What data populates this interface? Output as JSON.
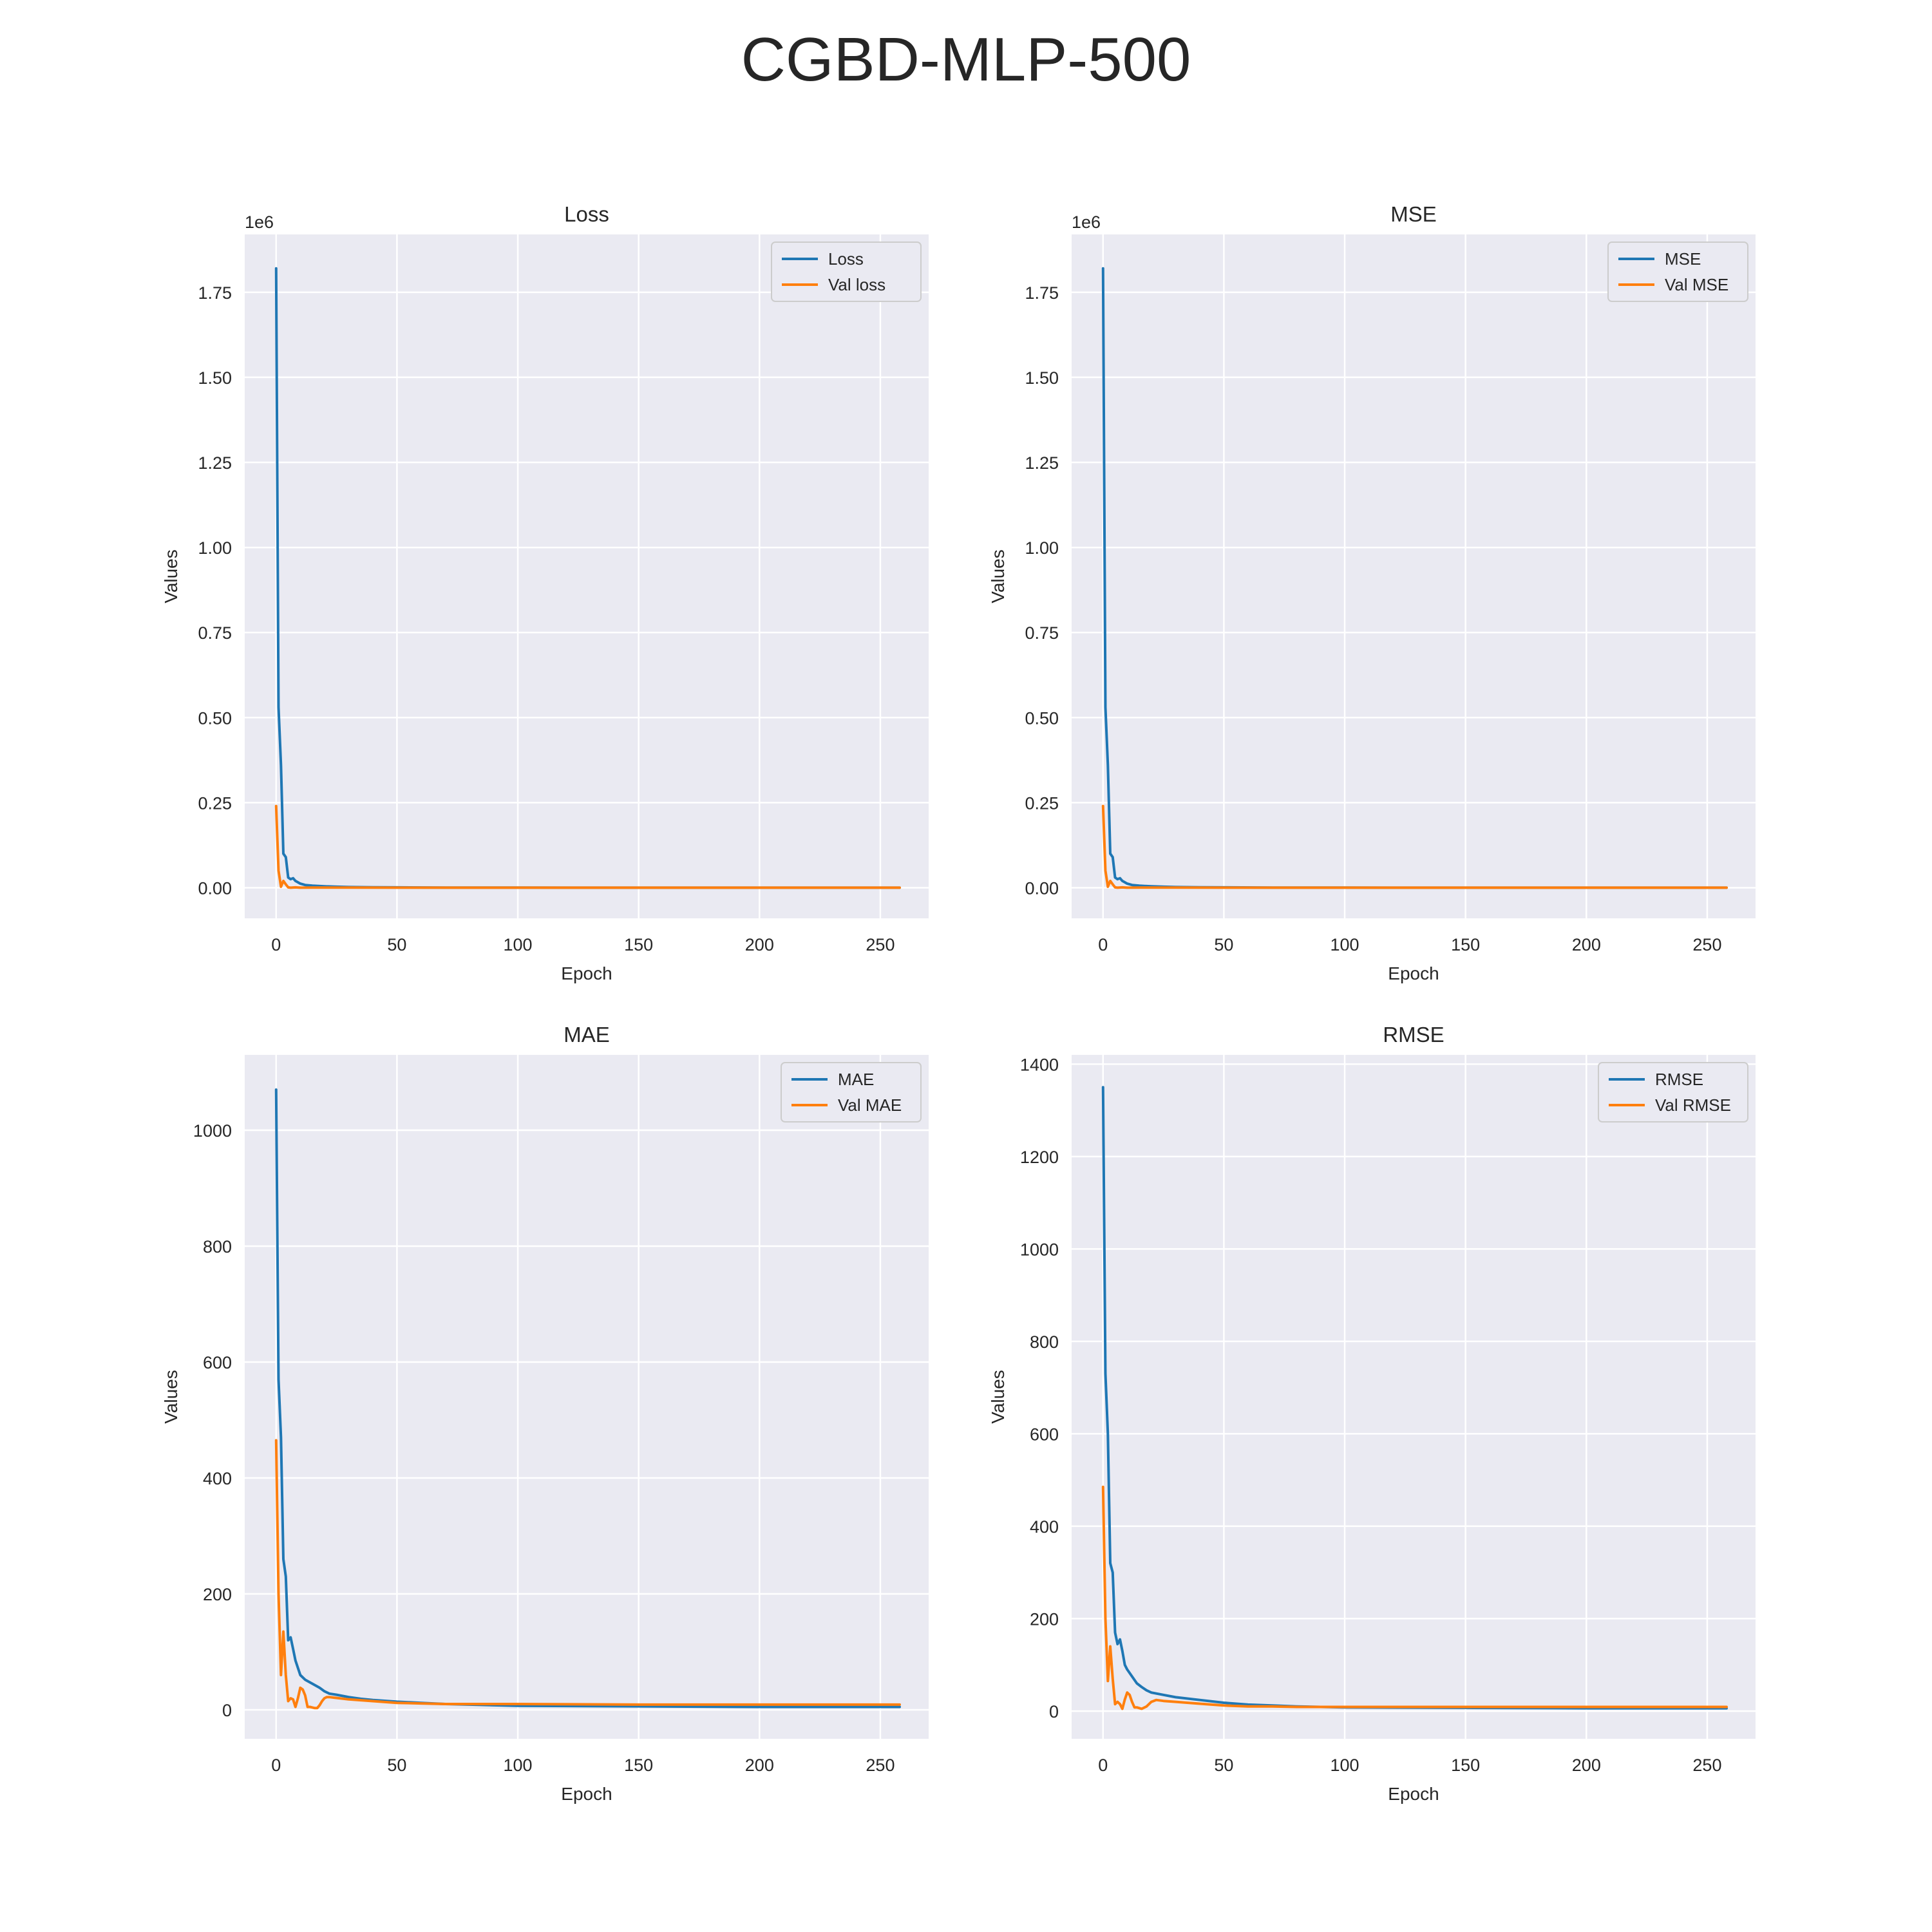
{
  "suptitle": "CGBD-MLP-500",
  "colors": {
    "axes_bg": "#eaeaf2",
    "grid": "#ffffff",
    "train": "#1f77b4",
    "val": "#ff7f0e",
    "text": "#262626"
  },
  "chart_data": [
    {
      "type": "line",
      "title": "Loss",
      "xlabel": "Epoch",
      "ylabel": "Values",
      "offset_text": "1e6",
      "xlim": [
        -13,
        270
      ],
      "ylim": [
        -0.09,
        1.92
      ],
      "xticks": [
        0,
        50,
        100,
        150,
        200,
        250
      ],
      "yticks": [
        0,
        0.25,
        0.5,
        0.75,
        1.0,
        1.25,
        1.5,
        1.75
      ],
      "ytick_labels": [
        "0.00",
        "0.25",
        "0.50",
        "0.75",
        "1.00",
        "1.25",
        "1.50",
        "1.75"
      ],
      "grid": true,
      "legend_position": "upper right",
      "series": [
        {
          "name": "Loss",
          "color_role": "train",
          "x": [
            0,
            1,
            2,
            3,
            4,
            5,
            6,
            7,
            8,
            10,
            12,
            15,
            20,
            25,
            30,
            40,
            50,
            70,
            100,
            150,
            200,
            258
          ],
          "y": [
            1.82,
            0.53,
            0.36,
            0.1,
            0.09,
            0.03,
            0.025,
            0.028,
            0.02,
            0.012,
            0.008,
            0.006,
            0.004,
            0.003,
            0.002,
            0.0015,
            0.001,
            0.0005,
            0.0002,
            0.0001,
            0.0001,
            0.0001
          ]
        },
        {
          "name": "Val loss",
          "color_role": "val",
          "x": [
            0,
            1,
            2,
            3,
            4,
            5,
            6,
            8,
            10,
            15,
            20,
            30,
            50,
            100,
            150,
            200,
            258
          ],
          "y": [
            0.24,
            0.05,
            0.003,
            0.02,
            0.01,
            0.001,
            0.0,
            0.001,
            0.0,
            0.0005,
            0.0002,
            0.0002,
            0.0001,
            0.0001,
            0.0001,
            0.0001,
            0.0001
          ]
        }
      ]
    },
    {
      "type": "line",
      "title": "MSE",
      "xlabel": "Epoch",
      "ylabel": "Values",
      "offset_text": "1e6",
      "xlim": [
        -13,
        270
      ],
      "ylim": [
        -0.09,
        1.92
      ],
      "xticks": [
        0,
        50,
        100,
        150,
        200,
        250
      ],
      "yticks": [
        0,
        0.25,
        0.5,
        0.75,
        1.0,
        1.25,
        1.5,
        1.75
      ],
      "ytick_labels": [
        "0.00",
        "0.25",
        "0.50",
        "0.75",
        "1.00",
        "1.25",
        "1.50",
        "1.75"
      ],
      "grid": true,
      "legend_position": "upper right",
      "series": [
        {
          "name": "MSE",
          "color_role": "train",
          "x": [
            0,
            1,
            2,
            3,
            4,
            5,
            6,
            7,
            8,
            10,
            12,
            15,
            20,
            25,
            30,
            40,
            50,
            70,
            100,
            150,
            200,
            258
          ],
          "y": [
            1.82,
            0.53,
            0.36,
            0.1,
            0.09,
            0.03,
            0.025,
            0.028,
            0.02,
            0.012,
            0.008,
            0.006,
            0.004,
            0.003,
            0.002,
            0.0015,
            0.001,
            0.0005,
            0.0002,
            0.0001,
            0.0001,
            0.0001
          ]
        },
        {
          "name": "Val MSE",
          "color_role": "val",
          "x": [
            0,
            1,
            2,
            3,
            4,
            5,
            6,
            8,
            10,
            15,
            20,
            30,
            50,
            100,
            150,
            200,
            258
          ],
          "y": [
            0.24,
            0.05,
            0.003,
            0.02,
            0.01,
            0.001,
            0.0,
            0.001,
            0.0,
            0.0005,
            0.0002,
            0.0002,
            0.0001,
            0.0001,
            0.0001,
            0.0001,
            0.0001
          ]
        }
      ]
    },
    {
      "type": "line",
      "title": "MAE",
      "xlabel": "Epoch",
      "ylabel": "Values",
      "offset_text": "",
      "xlim": [
        -13,
        270
      ],
      "ylim": [
        -50,
        1130
      ],
      "xticks": [
        0,
        50,
        100,
        150,
        200,
        250
      ],
      "yticks": [
        0,
        200,
        400,
        600,
        800,
        1000
      ],
      "ytick_labels": [
        "0",
        "200",
        "400",
        "600",
        "800",
        "1000"
      ],
      "grid": true,
      "legend_position": "upper right",
      "series": [
        {
          "name": "MAE",
          "color_role": "train",
          "x": [
            0,
            1,
            2,
            3,
            4,
            5,
            6,
            7,
            8,
            10,
            12,
            15,
            18,
            20,
            22,
            25,
            30,
            35,
            40,
            50,
            60,
            70,
            80,
            100,
            150,
            200,
            258
          ],
          "y": [
            1070,
            570,
            470,
            260,
            230,
            120,
            125,
            105,
            85,
            60,
            52,
            45,
            38,
            32,
            28,
            26,
            22,
            19,
            17,
            14,
            12,
            10,
            9,
            7,
            6,
            5,
            5
          ]
        },
        {
          "name": "Val MAE",
          "color_role": "val",
          "x": [
            0,
            1,
            2,
            3,
            4,
            5,
            6,
            7,
            8,
            9,
            10,
            11,
            12,
            13,
            14,
            15,
            16,
            17,
            18,
            19,
            20,
            21,
            22,
            24,
            26,
            30,
            40,
            50,
            60,
            70,
            80,
            100,
            150,
            200,
            258
          ],
          "y": [
            465,
            200,
            60,
            135,
            60,
            15,
            20,
            18,
            5,
            20,
            38,
            35,
            25,
            5,
            5,
            4,
            3,
            3,
            8,
            15,
            20,
            22,
            22,
            21,
            20,
            18,
            15,
            12,
            11,
            10,
            10,
            10,
            9,
            9,
            9
          ]
        }
      ]
    },
    {
      "type": "line",
      "title": "RMSE",
      "xlabel": "Epoch",
      "ylabel": "Values",
      "offset_text": "",
      "xlim": [
        -13,
        270
      ],
      "ylim": [
        -60,
        1420
      ],
      "xticks": [
        0,
        50,
        100,
        150,
        200,
        250
      ],
      "yticks": [
        0,
        200,
        400,
        600,
        800,
        1000,
        1200,
        1400
      ],
      "ytick_labels": [
        "0",
        "200",
        "400",
        "600",
        "800",
        "1000",
        "1200",
        "1400"
      ],
      "grid": true,
      "legend_position": "upper right",
      "series": [
        {
          "name": "RMSE",
          "color_role": "train",
          "x": [
            0,
            1,
            2,
            3,
            4,
            5,
            6,
            7,
            8,
            9,
            10,
            12,
            14,
            16,
            18,
            20,
            25,
            30,
            40,
            50,
            60,
            70,
            80,
            100,
            150,
            200,
            258
          ],
          "y": [
            1350,
            730,
            600,
            320,
            300,
            170,
            145,
            155,
            130,
            100,
            90,
            75,
            60,
            52,
            45,
            40,
            35,
            30,
            24,
            18,
            14,
            12,
            10,
            8,
            7,
            6,
            6
          ]
        },
        {
          "name": "Val RMSE",
          "color_role": "val",
          "x": [
            0,
            1,
            2,
            3,
            4,
            5,
            6,
            7,
            8,
            9,
            10,
            11,
            12,
            13,
            14,
            16,
            18,
            20,
            22,
            25,
            30,
            40,
            50,
            60,
            70,
            80,
            100,
            150,
            200,
            258
          ],
          "y": [
            485,
            200,
            65,
            140,
            70,
            15,
            20,
            15,
            5,
            25,
            40,
            35,
            20,
            8,
            8,
            5,
            10,
            20,
            24,
            22,
            20,
            16,
            12,
            10,
            10,
            9,
            9,
            9,
            9,
            9
          ]
        }
      ]
    }
  ]
}
